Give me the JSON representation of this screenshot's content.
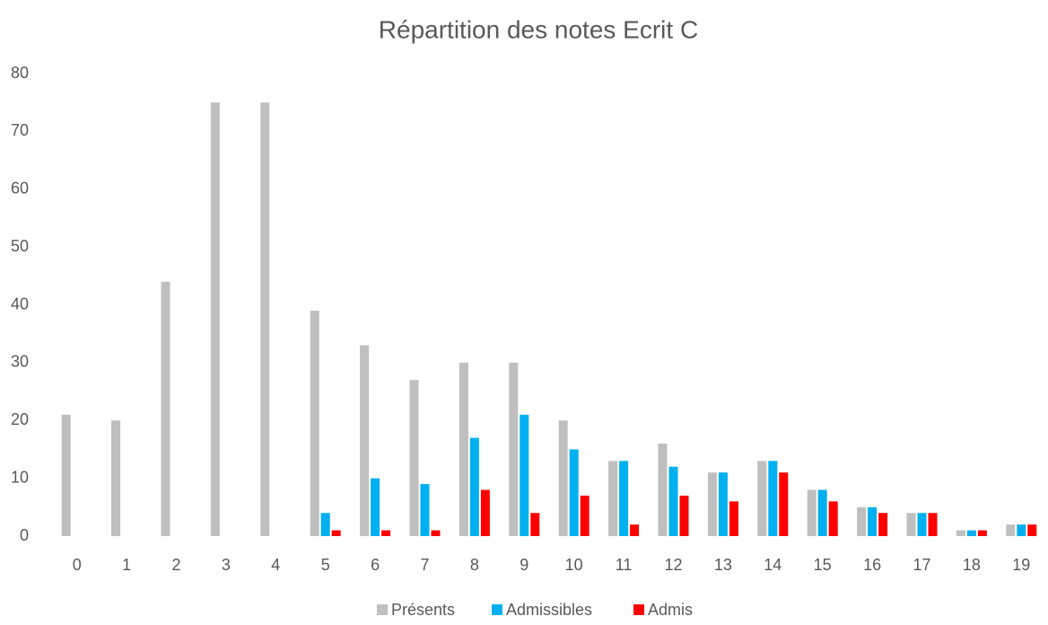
{
  "chart_data": {
    "type": "bar",
    "title": "Répartition des notes Ecrit C",
    "categories": [
      "0",
      "1",
      "2",
      "3",
      "4",
      "5",
      "6",
      "7",
      "8",
      "9",
      "10",
      "11",
      "12",
      "13",
      "14",
      "15",
      "16",
      "17",
      "18",
      "19"
    ],
    "series": [
      {
        "name": "Présents",
        "color": "#bfbfbf",
        "values": [
          21,
          20,
          44,
          75,
          75,
          39,
          33,
          27,
          30,
          30,
          20,
          13,
          16,
          11,
          13,
          8,
          5,
          4,
          1,
          2
        ]
      },
      {
        "name": "Admissibles",
        "color": "#00b0f0",
        "values": [
          0,
          0,
          0,
          0,
          0,
          4,
          10,
          9,
          17,
          21,
          15,
          13,
          12,
          11,
          13,
          8,
          5,
          4,
          1,
          2
        ]
      },
      {
        "name": "Admis",
        "color": "#ff0000",
        "values": [
          0,
          0,
          0,
          0,
          0,
          1,
          1,
          1,
          8,
          4,
          7,
          2,
          7,
          6,
          11,
          6,
          4,
          4,
          1,
          2
        ]
      }
    ],
    "ylim": [
      0,
      80
    ],
    "yticks": [
      0,
      10,
      20,
      30,
      40,
      50,
      60,
      70,
      80
    ],
    "grid": false,
    "legend": "bottom"
  }
}
